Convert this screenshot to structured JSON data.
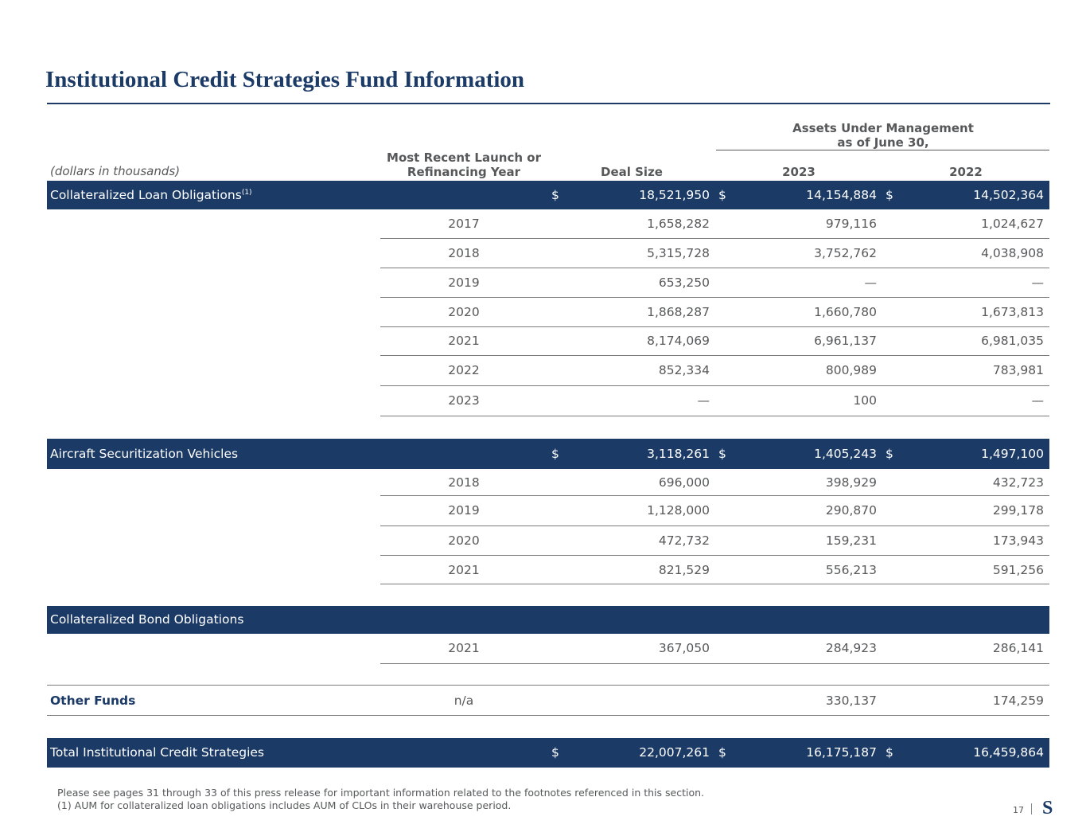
{
  "title": "Institutional Credit Strategies Fund Information",
  "header": {
    "units": "(dollars in thousands)",
    "launch_year_line1": "Most Recent Launch or",
    "launch_year_line2": "Refinancing Year",
    "deal_size": "Deal Size",
    "aum_line1": "Assets Under Management",
    "aum_line2": "as of June 30,",
    "year_a": "2023",
    "year_b": "2022"
  },
  "clo": {
    "label": "Collateralized Loan Obligations",
    "footnote_mark": "(1)",
    "currency": "$",
    "deal_size": "18,521,950",
    "aum_2023": "14,154,884",
    "aum_2022": "14,502,364",
    "rows": [
      {
        "year": "2017",
        "deal": "1,658,282",
        "a2023": "979,116",
        "a2022": "1,024,627"
      },
      {
        "year": "2018",
        "deal": "5,315,728",
        "a2023": "3,752,762",
        "a2022": "4,038,908"
      },
      {
        "year": "2019",
        "deal": "653,250",
        "a2023": "—",
        "a2022": "—"
      },
      {
        "year": "2020",
        "deal": "1,868,287",
        "a2023": "1,660,780",
        "a2022": "1,673,813"
      },
      {
        "year": "2021",
        "deal": "8,174,069",
        "a2023": "6,961,137",
        "a2022": "6,981,035"
      },
      {
        "year": "2022",
        "deal": "852,334",
        "a2023": "800,989",
        "a2022": "783,981"
      },
      {
        "year": "2023",
        "deal": "—",
        "a2023": "100",
        "a2022": "—"
      }
    ]
  },
  "asv": {
    "label": "Aircraft Securitization Vehicles",
    "currency": "$",
    "deal_size": "3,118,261",
    "aum_2023": "1,405,243",
    "aum_2022": "1,497,100",
    "rows": [
      {
        "year": "2018",
        "deal": "696,000",
        "a2023": "398,929",
        "a2022": "432,723"
      },
      {
        "year": "2019",
        "deal": "1,128,000",
        "a2023": "290,870",
        "a2022": "299,178"
      },
      {
        "year": "2020",
        "deal": "472,732",
        "a2023": "159,231",
        "a2022": "173,943"
      },
      {
        "year": "2021",
        "deal": "821,529",
        "a2023": "556,213",
        "a2022": "591,256"
      }
    ]
  },
  "cbo": {
    "label": "Collateralized Bond Obligations",
    "rows": [
      {
        "year": "2021",
        "deal": "367,050",
        "a2023": "284,923",
        "a2022": "286,141"
      }
    ]
  },
  "other": {
    "label": "Other Funds",
    "year": "n/a",
    "a2023": "330,137",
    "a2022": "174,259"
  },
  "total": {
    "label": "Total Institutional Credit Strategies",
    "currency": "$",
    "deal_size": "22,007,261",
    "aum_2023": "16,175,187",
    "aum_2022": "16,459,864"
  },
  "footnotes": {
    "line1": "Please see pages 31 through 33 of this press release for important information related to the footnotes referenced in this section.",
    "line2": "(1) AUM for collateralized loan obligations includes AUM of CLOs in their warehouse period."
  },
  "page_number": "17",
  "logo_letter": "S",
  "colors": {
    "navy": "#1b3a66",
    "text": "#57585a"
  }
}
